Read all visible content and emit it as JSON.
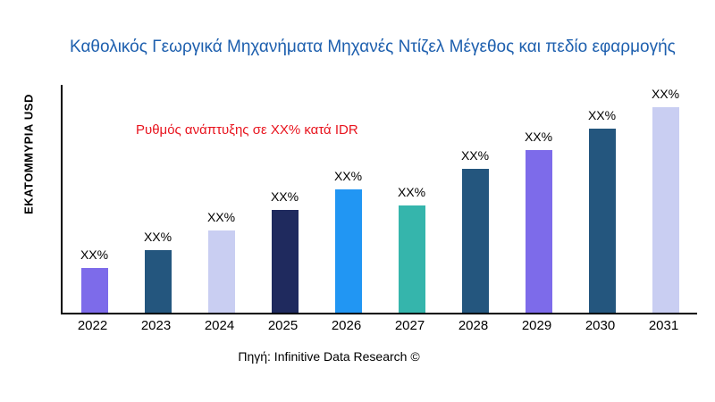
{
  "title": "Καθολικός Γεωργικά Μηχανήματα Μηχανές Ντίζελ Μέγεθος και πεδίο εφαρμογής",
  "y_axis_label": "ΕΚΑΤΟΜΜΥΡΙΑ USD",
  "annotation": "Ρυθμός ανάπτυξης σε XX% κατά IDR",
  "source": "Πηγή: Infinitive Data Research ©",
  "colors": {
    "title": "#1d5fae",
    "annotation": "#e8141e",
    "axis": "#000000"
  },
  "chart_data": {
    "type": "bar",
    "title": "Καθολικός Γεωργικά Μηχανήματα Μηχανές Ντίζελ Μέγεθος και πεδίο εφαρμογής",
    "xlabel": "",
    "ylabel": "ΕΚΑΤΟΜΜΥΡΙΑ USD",
    "categories": [
      "2022",
      "2023",
      "2024",
      "2025",
      "2026",
      "2027",
      "2028",
      "2029",
      "2030",
      "2031"
    ],
    "values": [
      50,
      70,
      92,
      115,
      138,
      120,
      161,
      182,
      206,
      230
    ],
    "values_note": "relative heights; actual values masked as XX% in chart",
    "bar_labels": [
      "XX%",
      "XX%",
      "XX%",
      "XX%",
      "XX%",
      "XX%",
      "XX%",
      "XX%",
      "XX%",
      "XX%"
    ],
    "bar_colors": [
      "#7d6bea",
      "#24567e",
      "#c9cef2",
      "#1f2a5e",
      "#2196f3",
      "#35b5ac",
      "#24567e",
      "#7d6bea",
      "#24567e",
      "#c9cef2"
    ],
    "ylim": [
      0,
      255
    ],
    "grid": false,
    "legend": false,
    "annotation": "Ρυθμός ανάπτυξης σε XX% κατά IDR"
  }
}
